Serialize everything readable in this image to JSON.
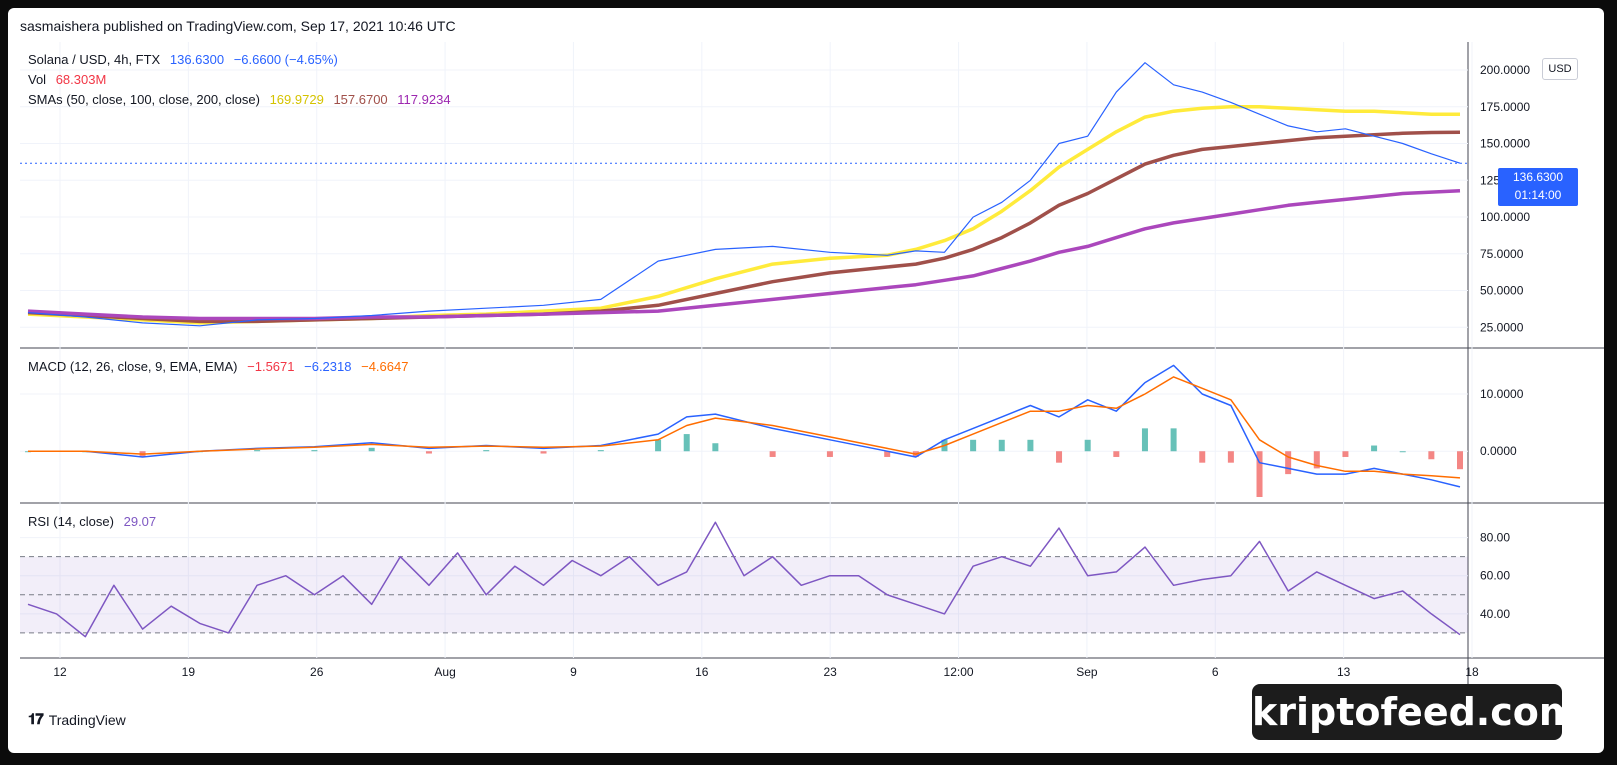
{
  "header": {
    "publisher": "sasmaishera published on TradingView.com, Sep 17, 2021 10:46 UTC"
  },
  "legend": {
    "symbol": "Solana / USD, 4h, FTX",
    "last": "136.6300",
    "change": "−6.6600 (−4.65%)",
    "vol_label": "Vol",
    "vol_value": "68.303M",
    "sma_label": "SMAs (50, close, 100, close, 200, close)",
    "sma50": "169.9729",
    "sma100": "157.6700",
    "sma200": "117.9234",
    "macd_label": "MACD (12, 26, close, 9, EMA, EMA)",
    "macd_hist": "−1.5671",
    "macd_line": "−6.2318",
    "macd_signal": "−4.6647",
    "rsi_label": "RSI (14, close)",
    "rsi_value": "29.07"
  },
  "price_badge": {
    "price": "136.6300",
    "countdown": "01:14:00"
  },
  "currency": "USD",
  "footer": {
    "brand": "TradingView",
    "watermark": "kriptofeed.com"
  },
  "colors": {
    "price": "#2962ff",
    "sma50": "#ffeb3b",
    "sma100": "#a0504a",
    "sma200": "#ab47bc",
    "macd": "#2962ff",
    "signal": "#ff6d00",
    "rsi": "#7e57c2",
    "up": "#26a69a",
    "down": "#ef5350"
  },
  "chart_data": [
    {
      "type": "line",
      "name": "price",
      "x": [
        0,
        4,
        8,
        12,
        16,
        20,
        24,
        28,
        32,
        36,
        40,
        44,
        48,
        52,
        56,
        60,
        62,
        64,
        66,
        68,
        70,
        72,
        74,
        76,
        78,
        80,
        82,
        84,
        86,
        88,
        90,
        92,
        94,
        96,
        98,
        100
      ],
      "series": [
        {
          "name": "Solana / USD",
          "values": [
            35,
            32,
            28,
            26,
            30,
            31,
            33,
            36,
            38,
            40,
            44,
            70,
            78,
            80,
            76,
            74,
            77,
            76,
            100,
            110,
            125,
            150,
            155,
            185,
            205,
            190,
            185,
            178,
            170,
            162,
            158,
            160,
            155,
            150,
            143,
            136.63
          ]
        },
        {
          "name": "SMA 50",
          "values": [
            34,
            32,
            30,
            28,
            29,
            30,
            31,
            33,
            34,
            36,
            38,
            46,
            58,
            68,
            72,
            74,
            78,
            84,
            92,
            104,
            118,
            134,
            146,
            158,
            168,
            172,
            174,
            175,
            175,
            174,
            173,
            172,
            172,
            171,
            170,
            169.97
          ]
        },
        {
          "name": "SMA 100",
          "values": [
            35,
            33,
            31,
            29,
            29,
            30,
            31,
            32,
            33,
            34,
            36,
            40,
            48,
            56,
            62,
            66,
            68,
            72,
            78,
            86,
            96,
            108,
            116,
            126,
            136,
            142,
            146,
            148,
            150,
            152,
            154,
            155,
            156,
            157,
            157.5,
            157.67
          ]
        },
        {
          "name": "SMA 200",
          "values": [
            36,
            34,
            32,
            31,
            31,
            31,
            32,
            32,
            33,
            34,
            35,
            36,
            40,
            44,
            48,
            52,
            54,
            57,
            60,
            65,
            70,
            76,
            80,
            86,
            92,
            96,
            99,
            102,
            105,
            108,
            110,
            112,
            114,
            116,
            117,
            117.92
          ]
        }
      ],
      "yticks": [
        "200.0000",
        "175.0000",
        "150.0000",
        "125.0000",
        "100.0000",
        "75.0000",
        "50.0000",
        "25.0000"
      ],
      "ylim": [
        15,
        215
      ]
    },
    {
      "type": "line",
      "name": "macd",
      "x": [
        0,
        4,
        8,
        12,
        16,
        20,
        24,
        28,
        32,
        36,
        40,
        44,
        46,
        48,
        52,
        56,
        60,
        62,
        64,
        66,
        68,
        70,
        72,
        74,
        76,
        78,
        80,
        82,
        84,
        86,
        88,
        90,
        92,
        94,
        96,
        98,
        100
      ],
      "series": [
        {
          "name": "MACD",
          "values": [
            0,
            0,
            -1,
            0,
            0.5,
            0.8,
            1.5,
            0.5,
            1,
            0.5,
            1,
            3,
            6,
            6.5,
            4,
            2,
            0,
            -1,
            2,
            4,
            6,
            8,
            6,
            9,
            7,
            12,
            15,
            10,
            8,
            -2,
            -3,
            -4,
            -4,
            -3,
            -4,
            -5,
            -6.23
          ]
        },
        {
          "name": "Signal",
          "values": [
            0,
            0,
            -0.5,
            0,
            0.4,
            0.7,
            1.2,
            0.7,
            0.9,
            0.7,
            0.9,
            2,
            4.5,
            5.8,
            4.5,
            2.5,
            0.5,
            -0.5,
            1,
            3,
            5,
            7,
            7,
            8,
            7.5,
            10,
            13,
            11,
            9,
            2,
            -1,
            -2.5,
            -3.5,
            -3.5,
            -4,
            -4.3,
            -4.66
          ]
        }
      ],
      "histogram_last": -1.5671,
      "yticks": [
        "10.0000",
        "0.0000"
      ],
      "ylim": [
        -8,
        17
      ]
    },
    {
      "type": "line",
      "name": "rsi",
      "x": [
        0,
        2,
        4,
        6,
        8,
        10,
        12,
        14,
        16,
        18,
        20,
        22,
        24,
        26,
        28,
        30,
        32,
        34,
        36,
        38,
        40,
        42,
        44,
        46,
        48,
        50,
        52,
        54,
        56,
        58,
        60,
        62,
        64,
        66,
        68,
        70,
        72,
        74,
        76,
        78,
        80,
        82,
        84,
        86,
        88,
        90,
        92,
        94,
        96,
        98,
        100
      ],
      "series": [
        {
          "name": "RSI",
          "values": [
            45,
            40,
            28,
            55,
            32,
            44,
            35,
            30,
            55,
            60,
            50,
            60,
            45,
            70,
            55,
            72,
            50,
            65,
            55,
            68,
            60,
            70,
            55,
            62,
            88,
            60,
            70,
            55,
            60,
            60,
            50,
            45,
            40,
            65,
            70,
            65,
            85,
            60,
            62,
            75,
            55,
            58,
            60,
            78,
            52,
            62,
            55,
            48,
            52,
            40,
            29.07
          ]
        }
      ],
      "yticks": [
        "80.00",
        "60.00",
        "40.00"
      ],
      "bands": [
        30,
        50,
        70
      ],
      "ylim": [
        20,
        95
      ]
    }
  ],
  "xaxis": {
    "labels": [
      "12",
      "19",
      "26",
      "Aug",
      "9",
      "16",
      "23",
      "12:00",
      "Sep",
      "6",
      "13",
      "18"
    ]
  }
}
